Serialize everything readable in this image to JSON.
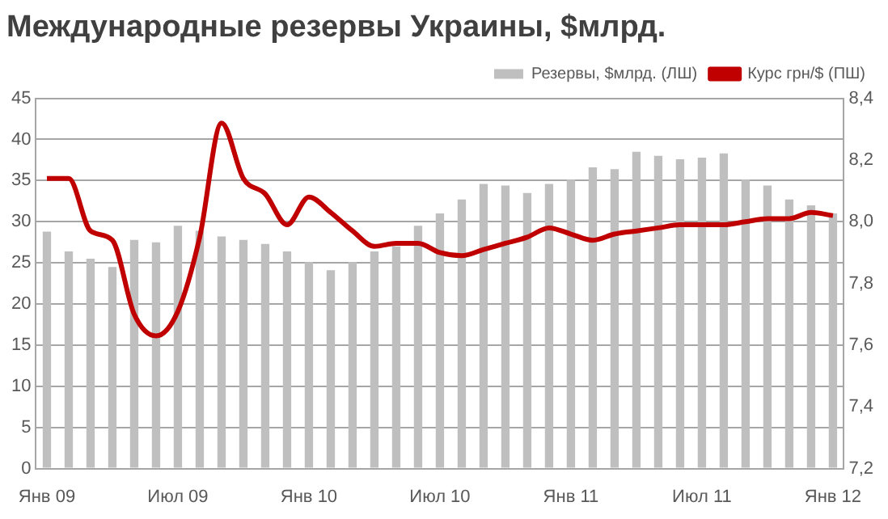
{
  "chart_data": {
    "type": "bar",
    "title": "Международные резервы Украины, $млрд.",
    "categories": [
      "Янв 09",
      null,
      null,
      null,
      null,
      null,
      "Июл 09",
      null,
      null,
      null,
      null,
      null,
      "Янв 10",
      null,
      null,
      null,
      null,
      null,
      "Июл 10",
      null,
      null,
      null,
      null,
      null,
      "Янв 11",
      null,
      null,
      null,
      null,
      null,
      "Июл 11",
      null,
      null,
      null,
      null,
      null,
      "Янв 12"
    ],
    "series": [
      {
        "name": "Резервы, $млрд. (ЛШ)",
        "color": "#bfbfbf",
        "values": [
          28.8,
          26.4,
          25.5,
          24.5,
          27.8,
          27.5,
          29.5,
          28.9,
          28.2,
          27.8,
          27.3,
          26.4,
          25.1,
          24.1,
          25.1,
          26.4,
          27.0,
          29.5,
          31.0,
          32.7,
          34.6,
          34.4,
          33.5,
          34.6,
          35.1,
          36.6,
          36.4,
          38.5,
          38.0,
          37.6,
          37.8,
          38.3,
          35.1,
          34.4,
          32.7,
          32.0,
          31.0
        ]
      },
      {
        "name": "Курс грн/$ (ПШ)",
        "type": "line",
        "axis": "y2",
        "color": "#c00000",
        "values": [
          8.14,
          8.14,
          7.97,
          7.94,
          7.7,
          7.63,
          7.71,
          7.95,
          8.32,
          8.14,
          8.09,
          7.99,
          8.08,
          8.03,
          7.97,
          7.92,
          7.93,
          7.93,
          7.9,
          7.89,
          7.91,
          7.93,
          7.95,
          7.98,
          7.96,
          7.94,
          7.96,
          7.97,
          7.98,
          7.99,
          7.99,
          7.99,
          8.0,
          8.01,
          8.01,
          8.03,
          8.02
        ]
      }
    ],
    "ylim": [
      0,
      45
    ],
    "yticks": [
      0,
      5,
      10,
      15,
      20,
      25,
      30,
      35,
      40,
      45
    ],
    "y2lim": [
      7.2,
      8.4
    ],
    "y2ticks": [
      {
        "value": 7.2,
        "label": "7,2"
      },
      {
        "value": 7.4,
        "label": "7,4"
      },
      {
        "value": 7.6,
        "label": "7,6"
      },
      {
        "value": 7.8,
        "label": "7,8"
      },
      {
        "value": 8.0,
        "label": "8,0"
      },
      {
        "value": 8.2,
        "label": "8,2"
      },
      {
        "value": 8.4,
        "label": "8,4"
      }
    ],
    "grid": "y",
    "legend": "top right",
    "marker": "none",
    "line_style": "solid"
  }
}
